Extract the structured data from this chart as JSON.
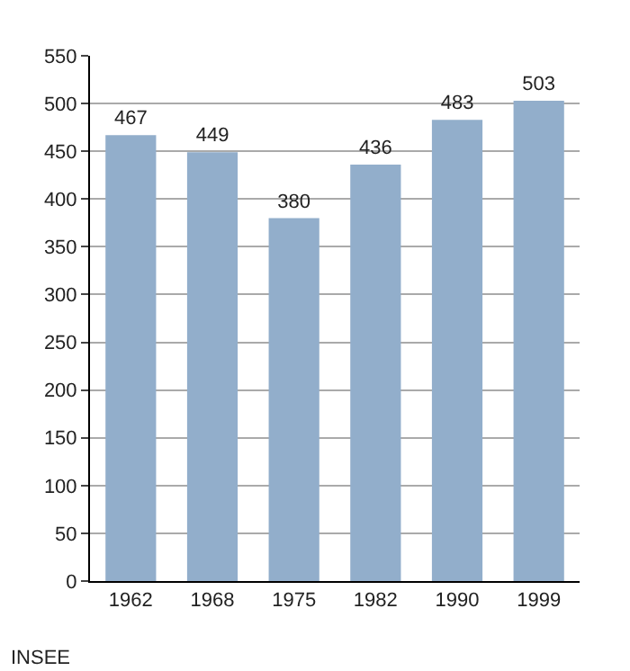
{
  "chart_data": {
    "type": "bar",
    "categories": [
      "1962",
      "1968",
      "1975",
      "1982",
      "1990",
      "1999"
    ],
    "values": [
      467,
      449,
      380,
      436,
      483,
      503
    ],
    "color": "#92aecb",
    "ylim": [
      0,
      550
    ],
    "yticks": [
      0,
      50,
      100,
      150,
      200,
      250,
      300,
      350,
      400,
      450,
      500,
      550
    ],
    "grid": "y",
    "data_labels": true,
    "annotations": [
      "INSEE"
    ]
  }
}
